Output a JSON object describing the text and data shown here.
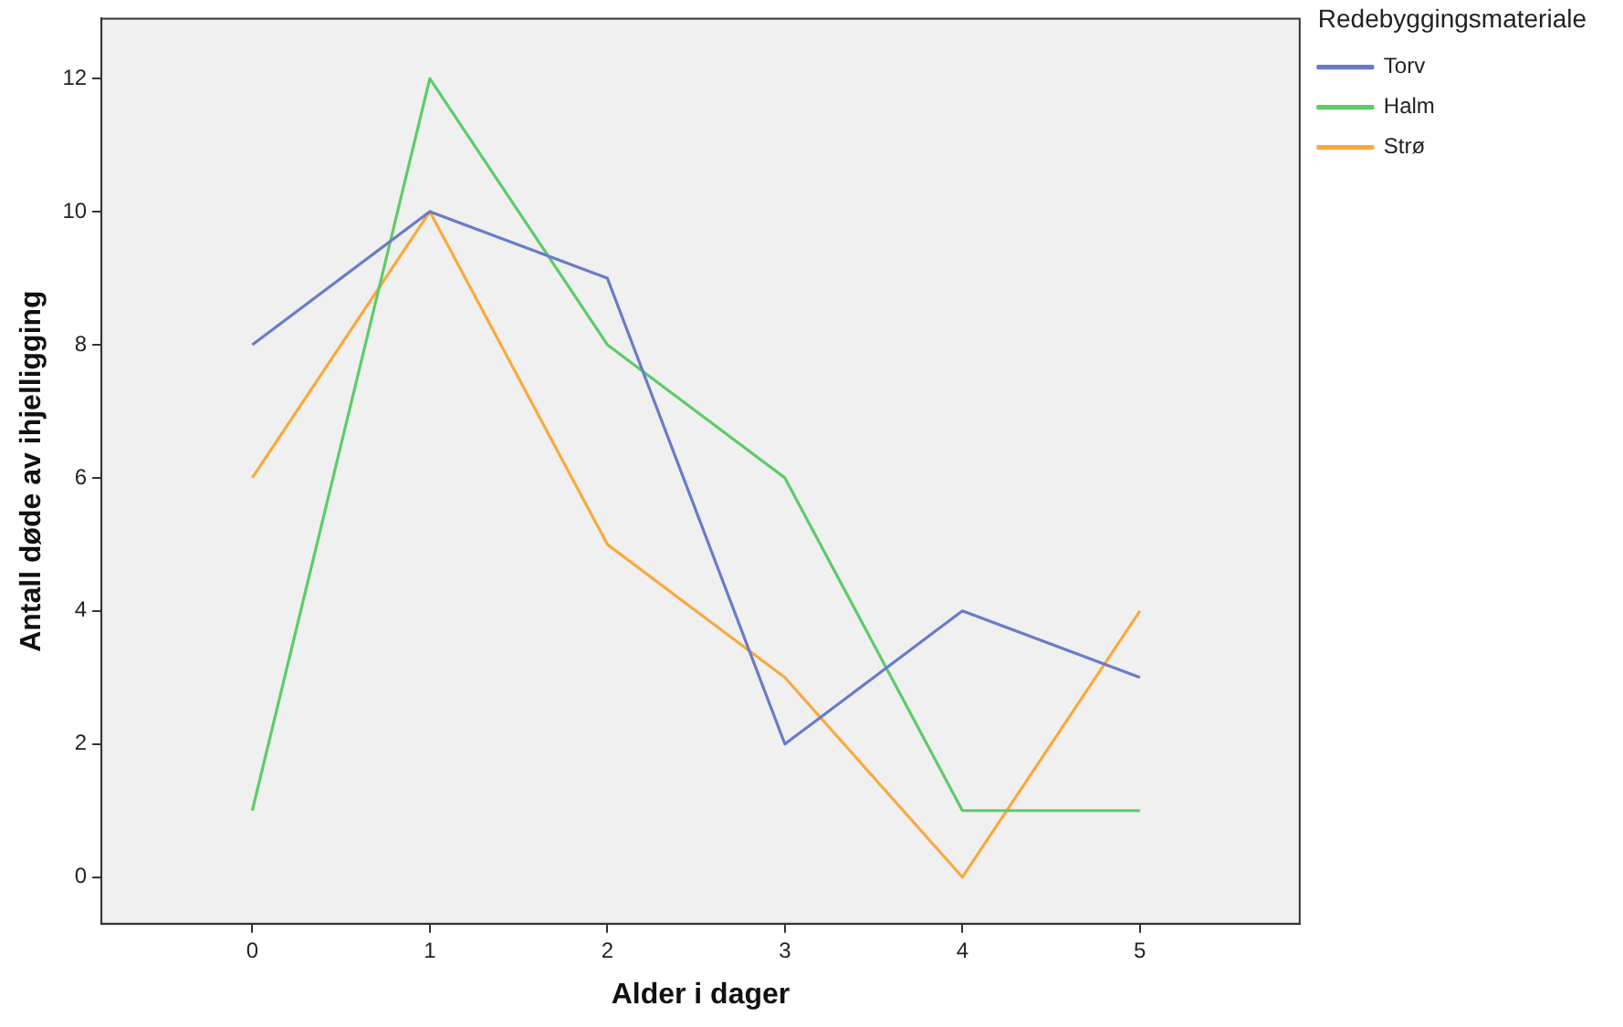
{
  "chart_data": {
    "type": "line",
    "xlabel": "Alder i dager",
    "ylabel": "Antall døde av ihjelligging",
    "legend_title": "Redebyggingsmateriale",
    "legend": "top right",
    "grid": false,
    "marker": "none",
    "line_style": "solid",
    "x": [
      0,
      1,
      2,
      3,
      4,
      5
    ],
    "xlim": [
      -0.85,
      5.9
    ],
    "xticks": [
      0,
      1,
      2,
      3,
      4,
      5
    ],
    "ylim": [
      -0.7,
      12.9
    ],
    "yticks": [
      0,
      2,
      4,
      6,
      8,
      10,
      12
    ],
    "series": [
      {
        "name": "Torv",
        "color": "#6a7bc8",
        "values": [
          8,
          10,
          9,
          2,
          4,
          3
        ]
      },
      {
        "name": "Halm",
        "color": "#5ecb68",
        "values": [
          1,
          12,
          8,
          6,
          1,
          1
        ]
      },
      {
        "name": "Strø",
        "color": "#f9a93f",
        "values": [
          6,
          10,
          5,
          3,
          0,
          4
        ]
      }
    ]
  }
}
